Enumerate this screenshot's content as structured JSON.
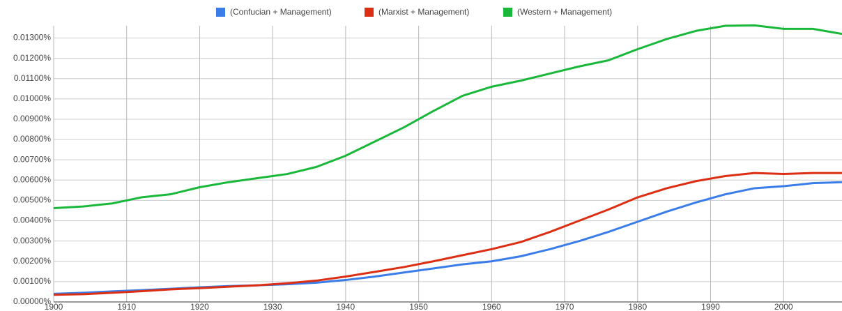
{
  "chart_data": {
    "type": "line",
    "x": [
      1900,
      1904,
      1908,
      1912,
      1916,
      1920,
      1924,
      1928,
      1932,
      1936,
      1940,
      1944,
      1948,
      1952,
      1956,
      1960,
      1964,
      1968,
      1972,
      1976,
      1980,
      1984,
      1988,
      1992,
      1996,
      2000,
      2004,
      2008
    ],
    "series": [
      {
        "name": "(Confucian + Management)",
        "color": "#3a7de8",
        "values": [
          0.0004,
          0.00045,
          0.00052,
          0.00058,
          0.00065,
          0.00072,
          0.00078,
          0.00082,
          0.00087,
          0.00095,
          0.00108,
          0.00125,
          0.00145,
          0.00165,
          0.00185,
          0.002,
          0.00225,
          0.0026,
          0.003,
          0.00345,
          0.00395,
          0.00445,
          0.0049,
          0.0053,
          0.0056,
          0.0057,
          0.00585,
          0.0059
        ]
      },
      {
        "name": "(Marxist + Management)",
        "color": "#dc2e12",
        "values": [
          0.00035,
          0.00038,
          0.00045,
          0.00053,
          0.00062,
          0.00068,
          0.00075,
          0.00082,
          0.00092,
          0.00105,
          0.00125,
          0.00148,
          0.00172,
          0.002,
          0.0023,
          0.0026,
          0.00295,
          0.00345,
          0.004,
          0.00455,
          0.00515,
          0.0056,
          0.00595,
          0.0062,
          0.00635,
          0.0063,
          0.00635,
          0.00635
        ]
      },
      {
        "name": "(Western + Management)",
        "color": "#1ab83a",
        "values": [
          0.00462,
          0.0047,
          0.00485,
          0.00515,
          0.0053,
          0.00565,
          0.0059,
          0.0061,
          0.0063,
          0.00665,
          0.0072,
          0.0079,
          0.0086,
          0.0094,
          0.01015,
          0.0106,
          0.0109,
          0.01125,
          0.0116,
          0.0119,
          0.01245,
          0.01295,
          0.01335,
          0.0136,
          0.01362,
          0.01345,
          0.01345,
          0.0132
        ]
      }
    ],
    "xlim": [
      1900,
      2008
    ],
    "xticks": [
      1900,
      1910,
      1920,
      1930,
      1940,
      1950,
      1960,
      1970,
      1980,
      1990,
      2000
    ],
    "ylim": [
      0,
      0.0136
    ],
    "yticks": [
      {
        "value": 0,
        "label": "0.00000%"
      },
      {
        "value": 0.001,
        "label": "0.00100%"
      },
      {
        "value": 0.002,
        "label": "0.00200%"
      },
      {
        "value": 0.003,
        "label": "0.00300%"
      },
      {
        "value": 0.004,
        "label": "0.00400%"
      },
      {
        "value": 0.005,
        "label": "0.00500%"
      },
      {
        "value": 0.006,
        "label": "0.00600%"
      },
      {
        "value": 0.007,
        "label": "0.00700%"
      },
      {
        "value": 0.008,
        "label": "0.00800%"
      },
      {
        "value": 0.009,
        "label": "0.00900%"
      },
      {
        "value": 0.01,
        "label": "0.01000%"
      },
      {
        "value": 0.011,
        "label": "0.01100%"
      },
      {
        "value": 0.012,
        "label": "0.01200%"
      },
      {
        "value": 0.013,
        "label": "0.01300%"
      }
    ],
    "grid": true,
    "legend": "top"
  }
}
